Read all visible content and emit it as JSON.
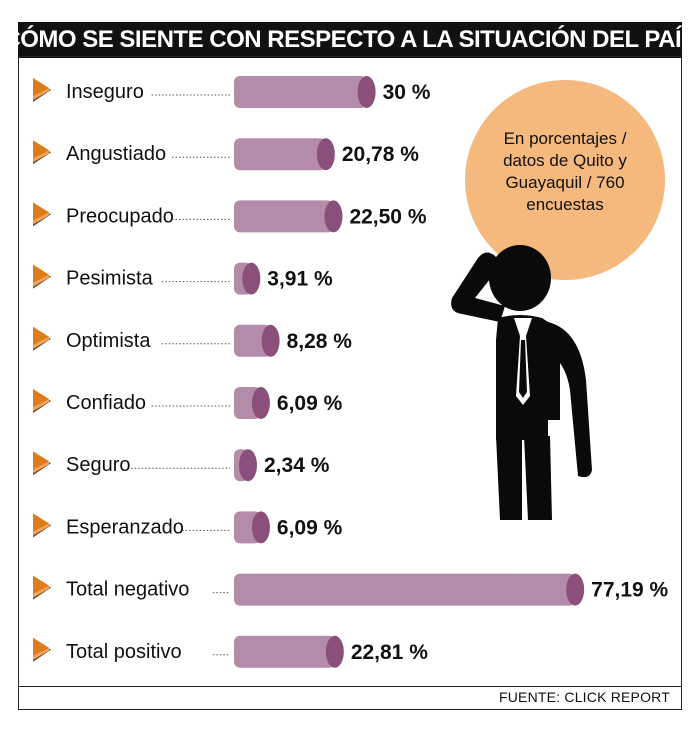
{
  "title": "¿CÓMO SE SIENTE CON RESPECTO A LA SITUACIÓN DEL PAÍS?",
  "note": "En porcentajes / datos de Quito y Guayaquil / 760 encuestas",
  "source": "FUENTE: CLICK REPORT",
  "colors": {
    "bar": "#b48ca9",
    "bar_end": "#8a4f7a",
    "arrow": "#e07b1a",
    "arrow_shadow": "#6b4a2a",
    "bubble": "#f5b87d",
    "figure": "#0a0a0a"
  },
  "icons": {
    "bullet": "arrow-bullet-icon",
    "figure": "worried-man-icon"
  },
  "chart_data": {
    "type": "bar",
    "orientation": "horizontal",
    "title": "¿CÓMO SE SIENTE CON RESPECTO A LA SITUACIÓN DEL PAÍS?",
    "categories": [
      "Inseguro",
      "Angustiado",
      "Preocupado",
      "Pesimista",
      "Optimista",
      "Confiado",
      "Seguro",
      "Esperanzado",
      "Total negativo",
      "Total positivo"
    ],
    "values": [
      30,
      20.78,
      22.5,
      3.91,
      8.28,
      6.09,
      2.34,
      6.09,
      77.19,
      22.81
    ],
    "value_labels": [
      "30 %",
      "20,78 %",
      "22,50 %",
      "3,91 %",
      "8,28 %",
      "6,09 %",
      "2,34 %",
      "6,09 %",
      "77,19 %",
      "22,81 %"
    ],
    "xlabel": "",
    "ylabel": "",
    "xlim": [
      0,
      100
    ],
    "grid": false,
    "legend": "none"
  }
}
